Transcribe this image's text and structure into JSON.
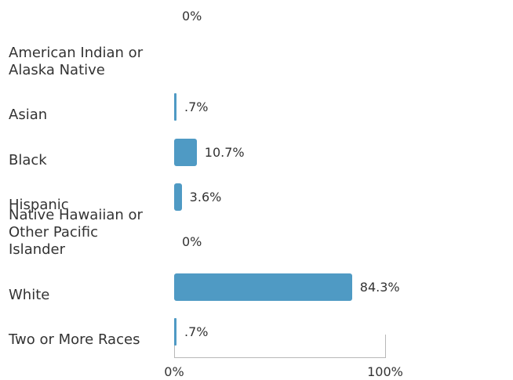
{
  "chart_data": {
    "type": "bar",
    "orientation": "horizontal",
    "title": "",
    "xlabel": "",
    "ylabel": "",
    "categories": [
      "American Indian or Alaska Native",
      "Asian",
      "Black",
      "Hispanic",
      "Native Hawaiian or Other Pacific Islander",
      "White",
      "Two or More Races"
    ],
    "values": [
      0,
      0.7,
      10.7,
      3.6,
      0,
      84.3,
      0.7
    ],
    "value_labels": [
      "0%",
      ".7%",
      "10.7%",
      "3.6%",
      "0%",
      "84.3%",
      ".7%"
    ],
    "xlim": [
      0,
      100
    ],
    "x_ticks": [
      {
        "value": 0,
        "label": "0%"
      },
      {
        "value": 100,
        "label": "100%"
      }
    ],
    "bar_color": "#4f9ac4",
    "grid": false
  }
}
